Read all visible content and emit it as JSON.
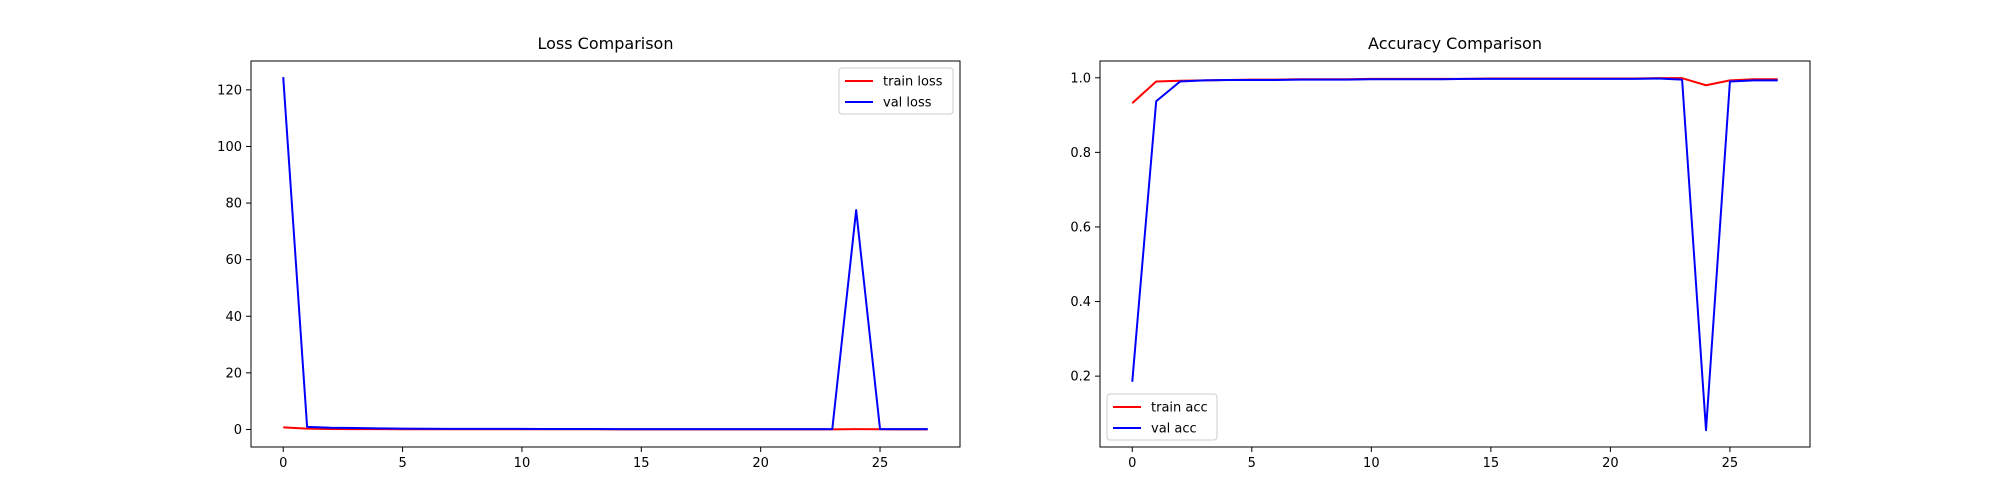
{
  "colors": {
    "train": "#ff0000",
    "val": "#0000ff",
    "axes": "#000000",
    "background": "#ffffff"
  },
  "chart_data": [
    {
      "type": "line",
      "title": "Loss Comparison",
      "xlabel": "",
      "ylabel": "",
      "xlim": [
        -1.35,
        28.35
      ],
      "ylim": [
        -6.2,
        130.2
      ],
      "xticks": [
        0,
        5,
        10,
        15,
        20,
        25
      ],
      "yticks": [
        0,
        20,
        40,
        60,
        80,
        100,
        120
      ],
      "grid": false,
      "legend_position": "top-right",
      "x": [
        0,
        1,
        2,
        3,
        4,
        5,
        6,
        7,
        8,
        9,
        10,
        11,
        12,
        13,
        14,
        15,
        16,
        17,
        18,
        19,
        20,
        21,
        22,
        23,
        24,
        25,
        26,
        27
      ],
      "series": [
        {
          "name": "train loss",
          "color": "red",
          "values": [
            0.75,
            0.3,
            0.15,
            0.12,
            0.1,
            0.09,
            0.08,
            0.07,
            0.07,
            0.06,
            0.06,
            0.05,
            0.05,
            0.05,
            0.04,
            0.04,
            0.04,
            0.04,
            0.03,
            0.03,
            0.03,
            0.03,
            0.03,
            0.03,
            0.12,
            0.05,
            0.03,
            0.03
          ]
        },
        {
          "name": "val loss",
          "color": "blue",
          "values": [
            124.5,
            0.9,
            0.6,
            0.5,
            0.4,
            0.3,
            0.25,
            0.2,
            0.2,
            0.2,
            0.2,
            0.15,
            0.15,
            0.15,
            0.1,
            0.1,
            0.1,
            0.1,
            0.1,
            0.1,
            0.1,
            0.1,
            0.1,
            0.1,
            77.5,
            0.1,
            0.1,
            0.1
          ]
        }
      ]
    },
    {
      "type": "line",
      "title": "Accuracy Comparison",
      "xlabel": "",
      "ylabel": "",
      "xlim": [
        -1.35,
        28.35
      ],
      "ylim": [
        0.01,
        1.045
      ],
      "xticks": [
        0,
        5,
        10,
        15,
        20,
        25
      ],
      "yticks": [
        0.2,
        0.4,
        0.6,
        0.8,
        1.0
      ],
      "ytick_labels": [
        "0.2",
        "0.4",
        "0.6",
        "0.8",
        "1.0"
      ],
      "grid": false,
      "legend_position": "bottom-left",
      "x": [
        0,
        1,
        2,
        3,
        4,
        5,
        6,
        7,
        8,
        9,
        10,
        11,
        12,
        13,
        14,
        15,
        16,
        17,
        18,
        19,
        20,
        21,
        22,
        23,
        24,
        25,
        26,
        27
      ],
      "series": [
        {
          "name": "train acc",
          "color": "red",
          "values": [
            0.932,
            0.99,
            0.992,
            0.993,
            0.994,
            0.995,
            0.995,
            0.996,
            0.996,
            0.996,
            0.997,
            0.997,
            0.997,
            0.997,
            0.997,
            0.998,
            0.998,
            0.998,
            0.998,
            0.998,
            0.998,
            0.998,
            0.999,
            0.999,
            0.98,
            0.993,
            0.996,
            0.996
          ]
        },
        {
          "name": "val acc",
          "color": "blue",
          "values": [
            0.185,
            0.937,
            0.99,
            0.993,
            0.994,
            0.994,
            0.994,
            0.995,
            0.995,
            0.995,
            0.996,
            0.996,
            0.996,
            0.996,
            0.997,
            0.997,
            0.997,
            0.997,
            0.997,
            0.997,
            0.997,
            0.997,
            0.998,
            0.995,
            0.055,
            0.99,
            0.993,
            0.993
          ]
        }
      ]
    }
  ]
}
